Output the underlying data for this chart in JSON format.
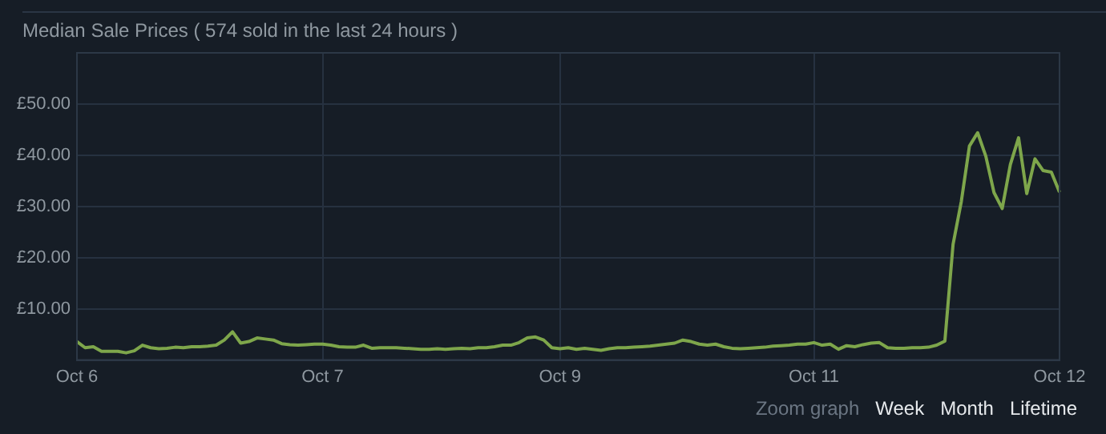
{
  "chart_data": {
    "type": "line",
    "title": "Median Sale Prices ( 574 sold in the last 24 hours )",
    "categories": [
      "Oct 6",
      null,
      null,
      null,
      null,
      null,
      null,
      null,
      null,
      null,
      null,
      null,
      null,
      null,
      null,
      null,
      null,
      null,
      null,
      null,
      null,
      null,
      null,
      null,
      null,
      null,
      null,
      null,
      null,
      null,
      "Oct 7",
      null,
      null,
      null,
      null,
      null,
      null,
      null,
      null,
      null,
      null,
      null,
      null,
      null,
      null,
      null,
      null,
      null,
      null,
      null,
      null,
      null,
      null,
      null,
      null,
      null,
      null,
      null,
      null,
      "Oct 9",
      null,
      null,
      null,
      null,
      null,
      null,
      null,
      null,
      null,
      null,
      null,
      null,
      null,
      null,
      null,
      null,
      null,
      null,
      null,
      null,
      null,
      null,
      null,
      null,
      null,
      null,
      null,
      null,
      null,
      null,
      "Oct 11",
      null,
      null,
      null,
      null,
      null,
      null,
      null,
      null,
      null,
      null,
      null,
      null,
      null,
      null,
      null,
      null,
      null,
      null,
      null,
      null,
      null,
      null,
      null,
      null,
      null,
      null,
      null,
      null,
      null,
      "Oct 12"
    ],
    "series": [
      {
        "color": "#7ea64b",
        "values": [
          3.6,
          2.4,
          2.6,
          1.7,
          1.7,
          1.7,
          1.4,
          1.8,
          2.9,
          2.4,
          2.2,
          2.3,
          2.5,
          2.4,
          2.6,
          2.6,
          2.7,
          2.9,
          3.9,
          5.5,
          3.3,
          3.6,
          4.3,
          4.1,
          3.9,
          3.2,
          3.0,
          2.9,
          3.0,
          3.1,
          3.1,
          2.9,
          2.6,
          2.5,
          2.5,
          2.9,
          2.3,
          2.4,
          2.4,
          2.4,
          2.3,
          2.2,
          2.1,
          2.1,
          2.2,
          2.1,
          2.2,
          2.3,
          2.2,
          2.4,
          2.4,
          2.6,
          2.9,
          2.9,
          3.4,
          4.3,
          4.5,
          3.9,
          2.4,
          2.2,
          2.4,
          2.1,
          2.3,
          2.1,
          1.9,
          2.2,
          2.4,
          2.4,
          2.5,
          2.6,
          2.7,
          2.9,
          3.1,
          3.3,
          3.9,
          3.6,
          3.1,
          2.9,
          3.1,
          2.6,
          2.3,
          2.2,
          2.3,
          2.4,
          2.5,
          2.7,
          2.8,
          2.9,
          3.1,
          3.1,
          3.4,
          2.9,
          3.1,
          2.1,
          2.8,
          2.6,
          3.0,
          3.3,
          3.4,
          2.4,
          2.3,
          2.3,
          2.4,
          2.4,
          2.5,
          2.9,
          3.7,
          22.6,
          30.9,
          41.8,
          44.4,
          39.8,
          32.7,
          29.6,
          38.2,
          43.4,
          32.5,
          39.3,
          37.0,
          36.7,
          32.8
        ]
      }
    ],
    "ylim": [
      0,
      60
    ],
    "yticks": [
      {
        "value": 10,
        "label": "£10.00"
      },
      {
        "value": 20,
        "label": "£20.00"
      },
      {
        "value": 30,
        "label": "£30.00"
      },
      {
        "value": 40,
        "label": "£40.00"
      },
      {
        "value": 50,
        "label": "£50.00"
      }
    ],
    "grid": true,
    "legend": false,
    "marker": "none",
    "line_style": "solid",
    "annotations": [
      "Zoom graph",
      "Week",
      "Month",
      "Lifetime"
    ]
  }
}
